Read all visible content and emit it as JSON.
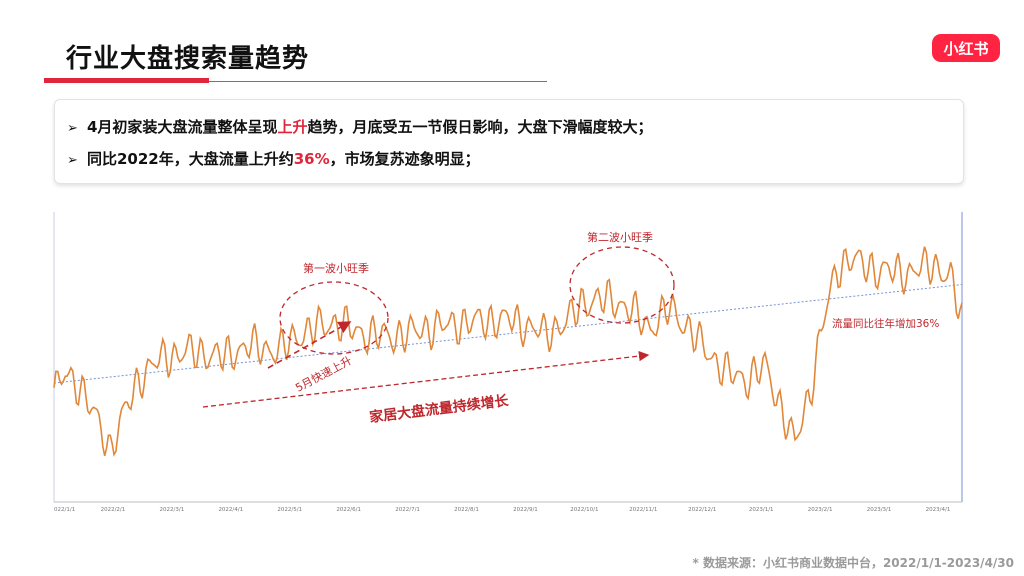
{
  "header": {
    "title": "行业大盘搜索量趋势",
    "logo_text": "小红书",
    "accent_color": "#e0263a",
    "logo_color": "#ff2442"
  },
  "bullets": [
    {
      "pre": "4月初家装大盘流量整体呈现",
      "highlight": "上升",
      "post": "趋势，月底受五一节假日影响，大盘下滑幅度较大；"
    },
    {
      "pre": "同比2022年，大盘流量上升约",
      "highlight": "36%",
      "post": "，市场复苏迹象明显；"
    }
  ],
  "bullet_marker": "➢",
  "chart_data": {
    "type": "line",
    "title": "",
    "xlabel": "",
    "ylabel": "",
    "line_color": "#e0873a",
    "trend_color": "#7a8fd6",
    "annotation_color": "#c0272d",
    "tick_labels": [
      "022/1/1",
      "2022/2/1",
      "2022/3/1",
      "2022/4/1",
      "2022/5/1",
      "2022/6/1",
      "2022/7/1",
      "2022/8/1",
      "2022/9/1",
      "2022/10/1",
      "2022/11/1",
      "2022/12/1",
      "2023/1/1",
      "2023/2/1",
      "2023/3/1",
      "2023/4/1"
    ],
    "x_start": "2022-01-01",
    "x_end": "2023-04-30",
    "ylim": [
      0,
      100
    ],
    "anchors": [
      [
        "2022-01-01",
        38
      ],
      [
        "2022-01-07",
        44
      ],
      [
        "2022-01-15",
        40
      ],
      [
        "2022-01-24",
        28
      ],
      [
        "2022-01-31",
        18
      ],
      [
        "2022-02-07",
        30
      ],
      [
        "2022-02-15",
        42
      ],
      [
        "2022-02-22",
        47
      ],
      [
        "2022-03-01",
        50
      ],
      [
        "2022-03-15",
        52
      ],
      [
        "2022-04-01",
        50
      ],
      [
        "2022-04-15",
        54
      ],
      [
        "2022-05-01",
        52
      ],
      [
        "2022-05-10",
        57
      ],
      [
        "2022-05-20",
        60
      ],
      [
        "2022-05-31",
        62
      ],
      [
        "2022-06-15",
        58
      ],
      [
        "2022-07-01",
        57
      ],
      [
        "2022-07-20",
        60
      ],
      [
        "2022-08-10",
        62
      ],
      [
        "2022-09-01",
        63
      ],
      [
        "2022-09-20",
        58
      ],
      [
        "2022-10-01",
        62
      ],
      [
        "2022-10-10",
        69
      ],
      [
        "2022-10-25",
        70
      ],
      [
        "2022-11-05",
        66
      ],
      [
        "2022-11-15",
        60
      ],
      [
        "2022-11-25",
        67
      ],
      [
        "2022-12-05",
        60
      ],
      [
        "2022-12-15",
        52
      ],
      [
        "2022-12-25",
        45
      ],
      [
        "2023-01-05",
        42
      ],
      [
        "2023-01-15",
        47
      ],
      [
        "2023-01-25",
        30
      ],
      [
        "2023-01-31",
        20
      ],
      [
        "2023-02-08",
        38
      ],
      [
        "2023-02-15",
        62
      ],
      [
        "2023-02-22",
        80
      ],
      [
        "2023-03-01",
        84
      ],
      [
        "2023-03-15",
        80
      ],
      [
        "2023-04-01",
        79
      ],
      [
        "2023-04-15",
        82
      ],
      [
        "2023-04-24",
        77
      ],
      [
        "2023-04-30",
        63
      ]
    ],
    "trend_line": [
      [
        "2022-01-01",
        41
      ],
      [
        "2023-04-30",
        75
      ]
    ],
    "annotations": [
      "第一波小旺季",
      "第二波小旺季",
      "5月快速上升",
      "家居大盘流量持续增长",
      "流量同比往年增加36%"
    ]
  },
  "source": "* 数据来源：小红书商业数据中台，2022/1/1-2023/4/30"
}
